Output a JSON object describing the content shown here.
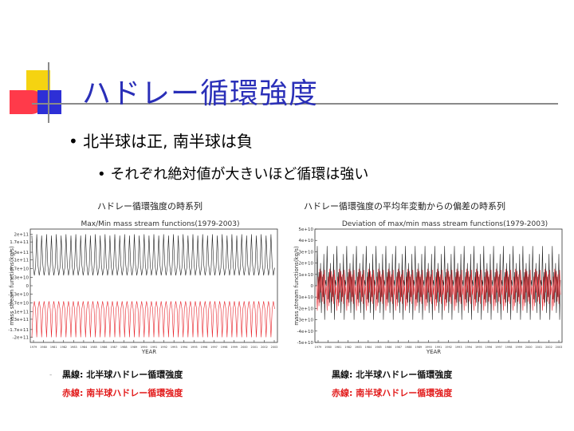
{
  "slide": {
    "title": "ハドレー循環強度",
    "bullet1": "• 北半球は正, 南半球は負",
    "bullet2": "• それぞれ絶対値が大きいほど循環は強い",
    "left_caption": "ハドレー循環強度の時系列",
    "right_caption": "ハドレー循環強度の平均年変動からの偏差の時系列",
    "left_legend_black": "黒線: 北半球ハドレー循環強度",
    "left_legend_red": "赤線: 南半球ハドレー循環強度",
    "right_legend_black": "黒線: 北半球ハドレー循環強度",
    "right_legend_red": "赤線: 南半球ハドレー循環強度",
    "left_legend_dash": "-"
  },
  "colors": {
    "title": "#2a2fb8",
    "nh_series": "#222222",
    "sh_series": "#e8242b",
    "legend_red": "#e21a1a"
  },
  "chart_data": [
    {
      "type": "line",
      "title": "Max/Min mass stream functions(1979-2003)",
      "xlabel": "YEAR",
      "ylabel": "mass stream functions(kg/s)",
      "x_start_year": 1979,
      "x_end_year": 2003,
      "x_ticks": [
        "1979",
        "1980",
        "1981",
        "1982",
        "1983",
        "1984",
        "1985",
        "1986",
        "1987",
        "1988",
        "1989",
        "1990",
        "1991",
        "1992",
        "1993",
        "1994",
        "1995",
        "1996",
        "1997",
        "1998",
        "1999",
        "2000",
        "2001",
        "2002",
        "2003"
      ],
      "ylim": [
        -220000000000.0,
        220000000000.0
      ],
      "y_ticks": [
        200000000000.0,
        170000000000.0,
        130000000000.0,
        100000000000.0,
        67000000000.0,
        33000000000.0,
        0,
        -33000000000.0,
        -67000000000.0,
        -100000000000.0,
        -130000000000.0,
        -170000000000.0,
        -200000000000.0
      ],
      "y_tick_labels": [
        "2e+11",
        "1.7e+11",
        "1.3e+11",
        "1e+11",
        "6.7e+10",
        "3.3e+10",
        "0",
        "-3.3e+10",
        "-6.7e+10",
        "-1e+11",
        "-1.3e+11",
        "-1.7e+11",
        "-2e+11"
      ],
      "series": [
        {
          "values": [
            195000000000.0,
            80000000000.0,
            40000000000.0,
            70000000000.0,
            200000000000.0,
            80000000000.0,
            40000000000.0,
            70000000000.0
          ]
        },
        {
          "values": [
            -200000000000.0,
            -90000000000.0,
            -60000000000.0,
            -90000000000.0,
            -200000000000.0,
            -90000000000.0,
            -60000000000.0,
            -90000000000.0
          ]
        }
      ]
    },
    {
      "type": "line",
      "title": "Deviation of max/min mass stream functions(1979-2003)",
      "xlabel": "YEAR",
      "ylabel": "mass stream functions(kg/s)",
      "x_start_year": 1979,
      "x_end_year": 2003,
      "x_ticks": [
        "1979",
        "1980",
        "1981",
        "1982",
        "1983",
        "1984",
        "1985",
        "1986",
        "1987",
        "1988",
        "1989",
        "1990",
        "1991",
        "1992",
        "1993",
        "1994",
        "1995",
        "1996",
        "1997",
        "1998",
        "1999",
        "2000",
        "2001",
        "2002",
        "2003"
      ],
      "ylim": [
        -50000000000.0,
        50000000000.0
      ],
      "y_ticks": [
        50000000000.0,
        40000000000.0,
        30000000000.0,
        20000000000.0,
        10000000000.0,
        0,
        -10000000000.0,
        -20000000000.0,
        -30000000000.0,
        -40000000000.0,
        -50000000000.0
      ],
      "y_tick_labels": [
        "5e+10",
        "4e+10",
        "3e+10",
        "2e+10",
        "1e+10",
        "0",
        "-1e+10",
        "-2e+10",
        "-3e+10",
        "-4e+10",
        "-5e+10"
      ],
      "series": [
        {
          "values": [
            0,
            8000000000.0,
            -12000000000.0,
            28000000000.0,
            -15000000000.0,
            5000000000.0,
            -24000000000.0,
            35000000000.0,
            -10000000000.0,
            12000000000.0,
            -30000000000.0,
            20000000000.0
          ]
        },
        {
          "values": [
            0,
            -6000000000.0,
            14000000000.0,
            -18000000000.0,
            10000000000.0,
            -22000000000.0,
            13000000000.0,
            -8000000000.0,
            15000000000.0,
            -16000000000.0,
            8000000000.0,
            -14000000000.0
          ]
        }
      ]
    }
  ]
}
